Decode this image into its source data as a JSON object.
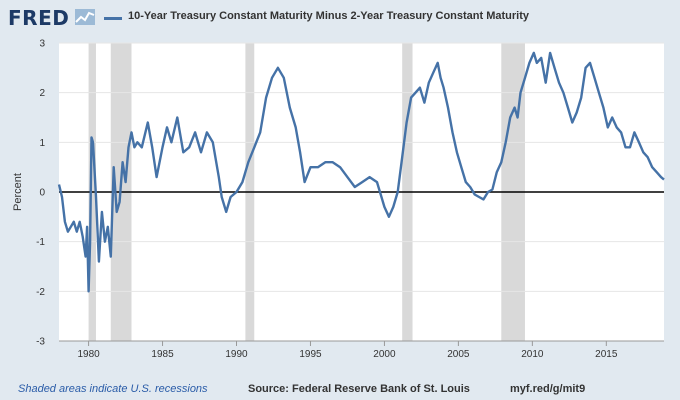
{
  "header": {
    "logo_text": "FRED",
    "logo_icon": "chart-line-icon",
    "legend_label": "10-Year Treasury Constant Maturity Minus 2-Year Treasury Constant Maturity"
  },
  "footer": {
    "recession_note": "Shaded areas indicate U.S. recessions",
    "source": "Source: Federal Reserve Bank of St. Louis",
    "short_link": "myf.red/g/mit9"
  },
  "colors": {
    "series": "#4572a7",
    "recession": "#d9d9d9",
    "plot_bg": "#ffffff",
    "page_bg": "#e1e9f0"
  },
  "chart_data": {
    "type": "line",
    "title": "10-Year Treasury Constant Maturity Minus 2-Year Treasury Constant Maturity",
    "xlabel": "",
    "ylabel": "Percent",
    "xlim": [
      1978.0,
      2018.9
    ],
    "ylim": [
      -3,
      3
    ],
    "x_ticks": [
      1980,
      1985,
      1990,
      1995,
      2000,
      2005,
      2010,
      2015
    ],
    "y_ticks": [
      -3,
      -2,
      -1,
      0,
      1,
      2,
      3
    ],
    "zero_line": true,
    "grid": true,
    "recessions": [
      [
        1980.0,
        1980.5
      ],
      [
        1981.5,
        1982.9
      ],
      [
        1990.6,
        1991.2
      ],
      [
        2001.2,
        2001.9
      ],
      [
        2007.9,
        2009.5
      ]
    ],
    "series": [
      {
        "name": "10-Year Treasury Constant Maturity Minus 2-Year Treasury Constant Maturity",
        "x": [
          1978.0,
          1978.2,
          1978.4,
          1978.6,
          1978.8,
          1979.0,
          1979.2,
          1979.4,
          1979.6,
          1979.8,
          1979.9,
          1980.0,
          1980.1,
          1980.2,
          1980.3,
          1980.5,
          1980.7,
          1980.9,
          1981.1,
          1981.3,
          1981.5,
          1981.7,
          1981.9,
          1982.1,
          1982.3,
          1982.5,
          1982.7,
          1982.9,
          1983.1,
          1983.3,
          1983.6,
          1984.0,
          1984.3,
          1984.6,
          1985.0,
          1985.3,
          1985.6,
          1986.0,
          1986.4,
          1986.8,
          1987.2,
          1987.6,
          1988.0,
          1988.4,
          1988.8,
          1989.0,
          1989.3,
          1989.6,
          1990.0,
          1990.4,
          1990.8,
          1991.2,
          1991.6,
          1992.0,
          1992.4,
          1992.8,
          1993.2,
          1993.6,
          1994.0,
          1994.3,
          1994.6,
          1995.0,
          1995.5,
          1996.0,
          1996.5,
          1997.0,
          1997.5,
          1998.0,
          1998.5,
          1999.0,
          1999.5,
          2000.0,
          2000.3,
          2000.6,
          2000.9,
          2001.2,
          2001.5,
          2001.8,
          2002.1,
          2002.4,
          2002.7,
          2003.0,
          2003.3,
          2003.6,
          2003.8,
          2004.0,
          2004.3,
          2004.6,
          2004.9,
          2005.2,
          2005.5,
          2005.8,
          2006.1,
          2006.4,
          2006.7,
          2007.0,
          2007.3,
          2007.6,
          2007.9,
          2008.2,
          2008.5,
          2008.8,
          2009.0,
          2009.2,
          2009.5,
          2009.8,
          2010.1,
          2010.3,
          2010.6,
          2010.9,
          2011.2,
          2011.5,
          2011.8,
          2012.1,
          2012.4,
          2012.7,
          2013.0,
          2013.3,
          2013.6,
          2013.9,
          2014.2,
          2014.5,
          2014.8,
          2015.1,
          2015.4,
          2015.7,
          2016.0,
          2016.3,
          2016.6,
          2016.9,
          2017.2,
          2017.5,
          2017.8,
          2018.1,
          2018.4,
          2018.7,
          2018.9
        ],
        "values": [
          0.15,
          -0.1,
          -0.6,
          -0.8,
          -0.7,
          -0.6,
          -0.8,
          -0.6,
          -0.9,
          -1.3,
          -0.7,
          -2.0,
          -1.0,
          1.1,
          1.0,
          -0.1,
          -1.4,
          -0.4,
          -1.0,
          -0.7,
          -1.3,
          0.5,
          -0.4,
          -0.2,
          0.6,
          0.2,
          0.9,
          1.2,
          0.9,
          1.0,
          0.9,
          1.4,
          0.9,
          0.3,
          0.9,
          1.3,
          1.0,
          1.5,
          0.8,
          0.9,
          1.2,
          0.8,
          1.2,
          1.0,
          0.3,
          -0.1,
          -0.4,
          -0.1,
          0.0,
          0.2,
          0.6,
          0.9,
          1.2,
          1.9,
          2.3,
          2.5,
          2.3,
          1.7,
          1.3,
          0.8,
          0.2,
          0.5,
          0.5,
          0.6,
          0.6,
          0.5,
          0.3,
          0.1,
          0.2,
          0.3,
          0.2,
          -0.3,
          -0.5,
          -0.3,
          0.0,
          0.7,
          1.4,
          1.9,
          2.0,
          2.1,
          1.8,
          2.2,
          2.4,
          2.6,
          2.3,
          2.1,
          1.7,
          1.2,
          0.8,
          0.5,
          0.2,
          0.1,
          -0.05,
          -0.1,
          -0.15,
          0.0,
          0.05,
          0.4,
          0.6,
          1.0,
          1.5,
          1.7,
          1.5,
          2.0,
          2.3,
          2.6,
          2.8,
          2.6,
          2.7,
          2.2,
          2.8,
          2.5,
          2.2,
          2.0,
          1.7,
          1.4,
          1.6,
          1.9,
          2.5,
          2.6,
          2.3,
          2.0,
          1.7,
          1.3,
          1.5,
          1.3,
          1.2,
          0.9,
          0.9,
          1.2,
          1.0,
          0.8,
          0.7,
          0.5,
          0.4,
          0.3,
          0.25
        ]
      }
    ]
  },
  "axis": {
    "x_tick_labels": [
      "1980",
      "1985",
      "1990",
      "1995",
      "2000",
      "2005",
      "2010",
      "2015"
    ],
    "y_tick_labels": [
      "-3",
      "-2",
      "-1",
      "0",
      "1",
      "2",
      "3"
    ]
  }
}
